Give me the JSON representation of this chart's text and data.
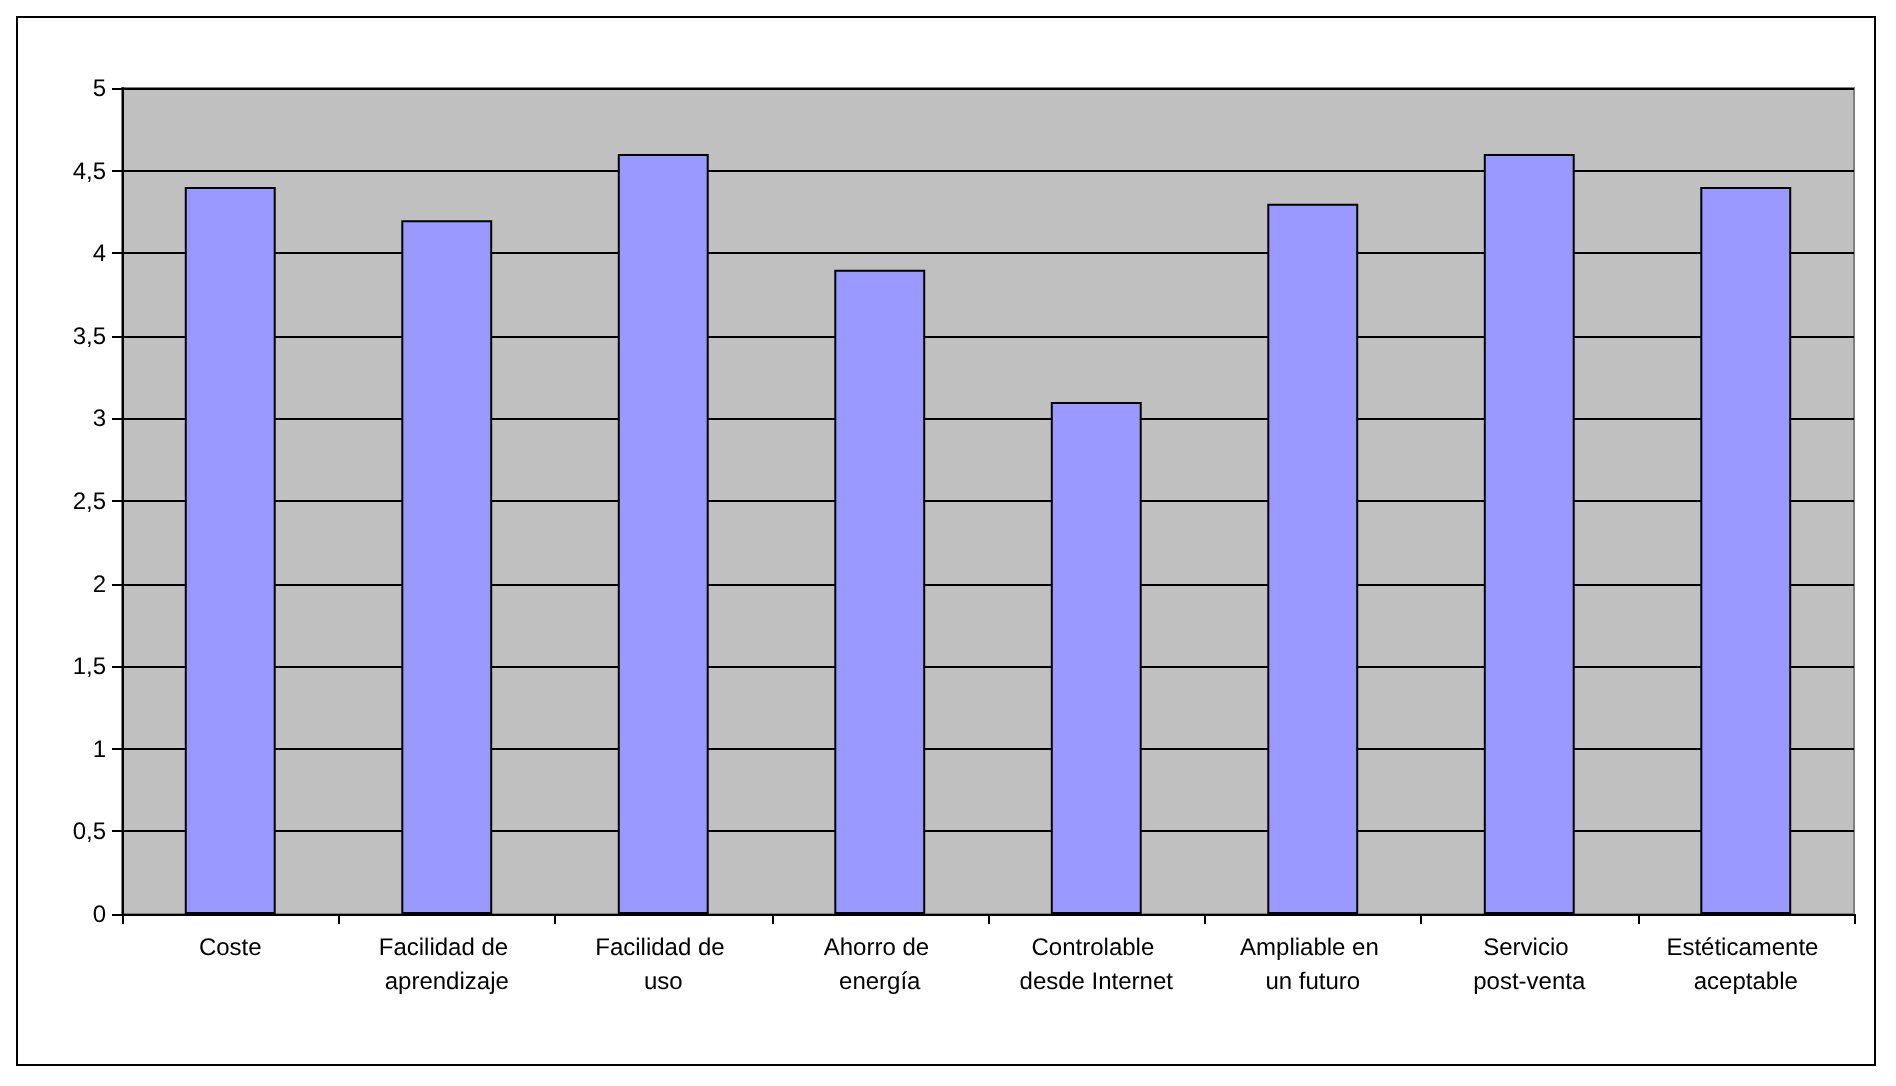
{
  "chart_data": {
    "type": "bar",
    "categories": [
      "Coste",
      "Facilidad de aprendizaje",
      "Facilidad de uso",
      "Ahorro de energía",
      "Controlable desde Internet",
      "Ampliable en un futuro",
      "Servicio post-venta",
      "Estéticamente aceptable"
    ],
    "values": [
      4.4,
      4.2,
      4.6,
      3.9,
      3.1,
      4.3,
      4.6,
      4.4
    ],
    "color": "#9999ff",
    "ylim": [
      0,
      5
    ],
    "yticks": [
      0,
      {
        "value": 0.5,
        "label": "0,5"
      },
      1,
      {
        "value": 1.5,
        "label": "1,5"
      },
      2,
      {
        "value": 2.5,
        "label": "2,5"
      },
      3,
      {
        "value": 3.5,
        "label": "3,5"
      },
      4,
      {
        "value": 4.5,
        "label": "4,5"
      },
      5
    ],
    "grid": "y"
  }
}
